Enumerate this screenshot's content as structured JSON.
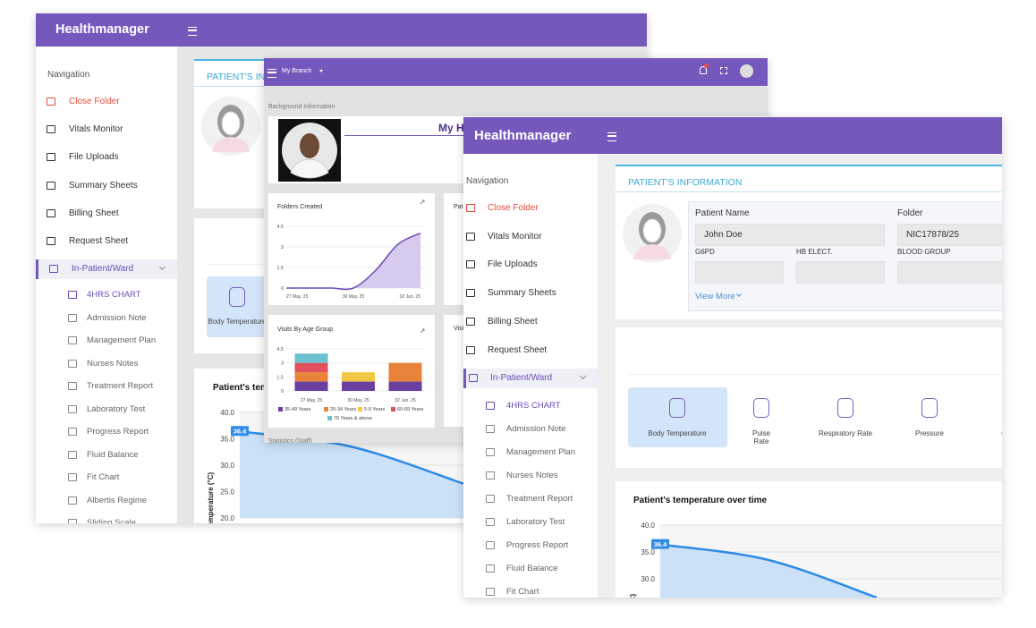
{
  "brand": "Healthmanager",
  "nav_heading": "Navigation",
  "nav": [
    "Close Folder",
    "Vitals Monitor",
    "File Uploads",
    "Summary Sheets",
    "Billing Sheet",
    "Request Sheet",
    "In-Patient/Ward"
  ],
  "sub_nav": [
    "4HRS CHART",
    "Admission Note",
    "Management Plan",
    "Nurses Notes",
    "Treatment Report",
    "Laboratory Test",
    "Progress Report",
    "Fluid Balance",
    "Fit Chart",
    "Albertis Regime",
    "Sliding Scale"
  ],
  "patient_info": {
    "title": "PATIENT'S INFORMATION",
    "fields": [
      {
        "label": "Patient Name",
        "value": "John Doe"
      },
      {
        "label": "Folder",
        "value": "NIC17878/25"
      },
      {
        "label": "G6PD"
      },
      {
        "label": "HB ELECT."
      },
      {
        "label": "BLOOD GROUP"
      }
    ],
    "view_more": "View More"
  },
  "vitals": [
    "Body Temperature",
    "Pulse Rate",
    "Respiratory Rate",
    "Pressure",
    "Oxygen"
  ],
  "temperature_chart": {
    "type": "area",
    "title": "Patient's temperature over time",
    "y_label": "Temperature (°C)",
    "values": [
      36.4,
      33.5,
      26.5
    ],
    "ylim": [
      20,
      40
    ],
    "yticks": [
      {
        "value": 20,
        "label": "20.0"
      },
      {
        "value": 25,
        "label": "25.0"
      },
      {
        "value": 30,
        "label": "30.0"
      },
      {
        "value": 35,
        "label": "35.0"
      },
      {
        "value": 40,
        "label": "40.0"
      }
    ]
  },
  "dashboard": {
    "branch": "My Branch",
    "background_title": "Background Information",
    "banner_title": "My Health",
    "folders_chart": {
      "type": "area",
      "title": "Folders Created",
      "categories": [
        "27 May, 25",
        null,
        null,
        "30 May, 25",
        null,
        null,
        "02 Jun, 25"
      ],
      "values": [
        0,
        0,
        0,
        0,
        1.3,
        3.2,
        4
      ],
      "color": "#6b4bb0",
      "ylim": [
        0,
        4.5
      ],
      "yticks": [
        0,
        1.5,
        3,
        4.5
      ]
    },
    "visits_chart": {
      "type": "bar",
      "stacked": true,
      "title": "Visits By Age Group",
      "categories": [
        "27 May, 25",
        "30 May, 25",
        "02 Jun, 25"
      ],
      "series": [
        {
          "name": "35-49 Years",
          "color": "#6a3fa0",
          "values": [
            1,
            1,
            1
          ]
        },
        {
          "name": "20-34 Years",
          "color": "#e8833a",
          "values": [
            1,
            0,
            2
          ]
        },
        {
          "name": "5-9 Years",
          "color": "#f2c744",
          "values": [
            0,
            1,
            0
          ]
        },
        {
          "name": "60-69 Years",
          "color": "#e0505e",
          "values": [
            1,
            0,
            0
          ]
        },
        {
          "name": "70 Years & above",
          "color": "#6cc0cf",
          "values": [
            1,
            0,
            0
          ]
        }
      ],
      "ylim": [
        0,
        4.5
      ],
      "yticks": [
        0,
        1.5,
        3,
        4.5
      ]
    },
    "side_cards": [
      "Patients",
      "Visits"
    ],
    "statistics_title": "Statistics (Staff)"
  }
}
